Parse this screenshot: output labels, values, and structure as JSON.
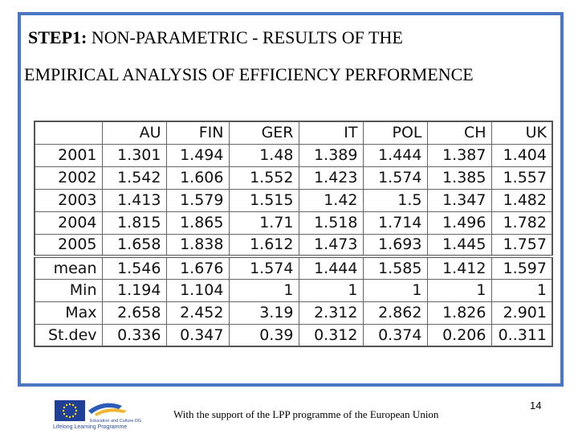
{
  "slide": {
    "title_step": "STEP1:",
    "title_rest": " NON-PARAMETRIC - RESULTS OF THE",
    "title_line2": "EMPIRICAL ANALYSIS OF EFFICIENCY PERFORMENCE"
  },
  "table": {
    "headers": [
      "",
      "AU",
      "FIN",
      "GER",
      "IT",
      "POL",
      "CH",
      "UK"
    ],
    "rows": [
      [
        "2001",
        "1.301",
        "1.494",
        "1.48",
        "1.389",
        "1.444",
        "1.387",
        "1.404"
      ],
      [
        "2002",
        "1.542",
        "1.606",
        "1.552",
        "1.423",
        "1.574",
        "1.385",
        "1.557"
      ],
      [
        "2003",
        "1.413",
        "1.579",
        "1.515",
        "1.42",
        "1.5",
        "1.347",
        "1.482"
      ],
      [
        "2004",
        "1.815",
        "1.865",
        "1.71",
        "1.518",
        "1.714",
        "1.496",
        "1.782"
      ],
      [
        "2005",
        "1.658",
        "1.838",
        "1.612",
        "1.473",
        "1.693",
        "1.445",
        "1.757"
      ]
    ],
    "stats": [
      [
        "mean",
        "1.546",
        "1.676",
        "1.574",
        "1.444",
        "1.585",
        "1.412",
        "1.597"
      ],
      [
        "Min",
        "1.194",
        "1.104",
        "1",
        "1",
        "1",
        "1",
        "1"
      ],
      [
        "Max",
        "2.658",
        "2.452",
        "3.19",
        "2.312",
        "2.862",
        "1.826",
        "2.901"
      ],
      [
        "St.dev",
        "0.336",
        "0.347",
        "0.39",
        "0.312",
        "0.374",
        "0.206",
        "0..311"
      ]
    ]
  },
  "footer": {
    "support_text": "With the support of the LPP programme of the European Union",
    "page_number": "14",
    "logo_caption": "Lifelong Learning Programme",
    "logo_small_text": "Education and Culture DG"
  },
  "colors": {
    "frame": "#4a76c4",
    "eu_blue": "#1f3f99",
    "eu_star": "#ffdd00"
  }
}
